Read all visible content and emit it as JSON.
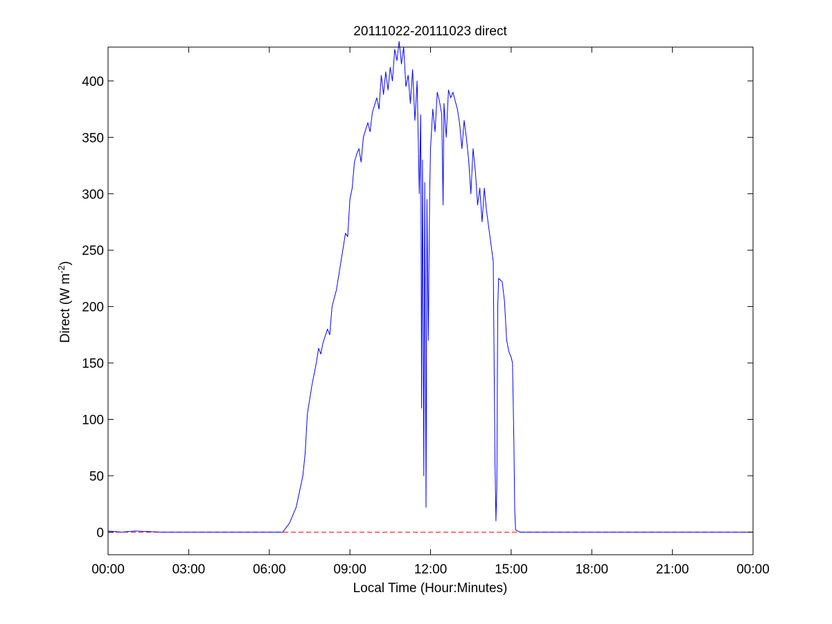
{
  "chart_data": {
    "type": "line",
    "title": "20111022-20111023 direct",
    "xlabel": "Local Time (Hour:Minutes)",
    "ylabel_main": "Direct (W m",
    "ylabel_sup": "-2",
    "ylabel_close": ")",
    "xlim": [
      "00:00",
      "24:00"
    ],
    "ylim": [
      -20,
      430
    ],
    "x_ticks": [
      "00:00",
      "03:00",
      "06:00",
      "09:00",
      "12:00",
      "15:00",
      "18:00",
      "21:00",
      "00:00"
    ],
    "y_ticks": [
      0,
      50,
      100,
      150,
      200,
      250,
      300,
      350,
      400
    ],
    "grid": false,
    "reference_line": {
      "y": 0,
      "style": "dashed",
      "color": "#ff0000"
    },
    "series": [
      {
        "color": "#0000ff",
        "points": [
          [
            "00:00",
            1
          ],
          [
            "00:30",
            0
          ],
          [
            "01:00",
            1
          ],
          [
            "02:00",
            0
          ],
          [
            "03:00",
            0
          ],
          [
            "04:00",
            0
          ],
          [
            "05:00",
            0
          ],
          [
            "06:00",
            0
          ],
          [
            "06:30",
            0
          ],
          [
            "06:45",
            8
          ],
          [
            "07:00",
            22
          ],
          [
            "07:15",
            50
          ],
          [
            "07:20",
            70
          ],
          [
            "07:25",
            105
          ],
          [
            "07:35",
            130
          ],
          [
            "07:45",
            150
          ],
          [
            "07:50",
            163
          ],
          [
            "07:55",
            158
          ],
          [
            "08:00",
            168
          ],
          [
            "08:10",
            180
          ],
          [
            "08:15",
            175
          ],
          [
            "08:20",
            200
          ],
          [
            "08:30",
            215
          ],
          [
            "08:40",
            240
          ],
          [
            "08:50",
            265
          ],
          [
            "08:55",
            262
          ],
          [
            "09:00",
            295
          ],
          [
            "09:05",
            305
          ],
          [
            "09:10",
            328
          ],
          [
            "09:15",
            335
          ],
          [
            "09:20",
            340
          ],
          [
            "09:25",
            328
          ],
          [
            "09:30",
            350
          ],
          [
            "09:40",
            363
          ],
          [
            "09:45",
            355
          ],
          [
            "09:50",
            372
          ],
          [
            "10:00",
            385
          ],
          [
            "10:05",
            375
          ],
          [
            "10:10",
            405
          ],
          [
            "10:15",
            388
          ],
          [
            "10:20",
            408
          ],
          [
            "10:25",
            392
          ],
          [
            "10:30",
            412
          ],
          [
            "10:35",
            400
          ],
          [
            "10:40",
            428
          ],
          [
            "10:45",
            418
          ],
          [
            "10:50",
            435
          ],
          [
            "10:55",
            415
          ],
          [
            "11:00",
            430
          ],
          [
            "11:05",
            395
          ],
          [
            "11:10",
            405
          ],
          [
            "11:15",
            380
          ],
          [
            "11:20",
            410
          ],
          [
            "11:25",
            365
          ],
          [
            "11:30",
            400
          ],
          [
            "11:35",
            300
          ],
          [
            "11:38",
            370
          ],
          [
            "11:40",
            110
          ],
          [
            "11:42",
            330
          ],
          [
            "11:45",
            50
          ],
          [
            "11:47",
            310
          ],
          [
            "11:50",
            22
          ],
          [
            "11:52",
            295
          ],
          [
            "11:55",
            170
          ],
          [
            "11:58",
            300
          ],
          [
            "12:00",
            340
          ],
          [
            "12:05",
            375
          ],
          [
            "12:10",
            355
          ],
          [
            "12:15",
            390
          ],
          [
            "12:20",
            382
          ],
          [
            "12:25",
            370
          ],
          [
            "12:28",
            290
          ],
          [
            "12:30",
            380
          ],
          [
            "12:35",
            350
          ],
          [
            "12:40",
            392
          ],
          [
            "12:45",
            385
          ],
          [
            "12:50",
            390
          ],
          [
            "13:00",
            375
          ],
          [
            "13:05",
            362
          ],
          [
            "13:10",
            340
          ],
          [
            "13:15",
            365
          ],
          [
            "13:20",
            350
          ],
          [
            "13:25",
            330
          ],
          [
            "13:30",
            300
          ],
          [
            "13:35",
            340
          ],
          [
            "13:40",
            320
          ],
          [
            "13:45",
            290
          ],
          [
            "13:50",
            305
          ],
          [
            "13:55",
            275
          ],
          [
            "14:00",
            305
          ],
          [
            "14:05",
            285
          ],
          [
            "14:10",
            270
          ],
          [
            "14:15",
            255
          ],
          [
            "14:20",
            240
          ],
          [
            "14:22",
            150
          ],
          [
            "14:24",
            60
          ],
          [
            "14:26",
            10
          ],
          [
            "14:28",
            40
          ],
          [
            "14:30",
            200
          ],
          [
            "14:32",
            225
          ],
          [
            "14:40",
            222
          ],
          [
            "14:45",
            205
          ],
          [
            "14:50",
            170
          ],
          [
            "14:55",
            160
          ],
          [
            "15:00",
            155
          ],
          [
            "15:03",
            150
          ],
          [
            "15:06",
            80
          ],
          [
            "15:08",
            20
          ],
          [
            "15:10",
            2
          ],
          [
            "15:20",
            0
          ],
          [
            "16:00",
            0
          ],
          [
            "18:00",
            0
          ],
          [
            "20:00",
            0
          ],
          [
            "22:00",
            0
          ],
          [
            "24:00",
            0
          ]
        ]
      }
    ]
  }
}
